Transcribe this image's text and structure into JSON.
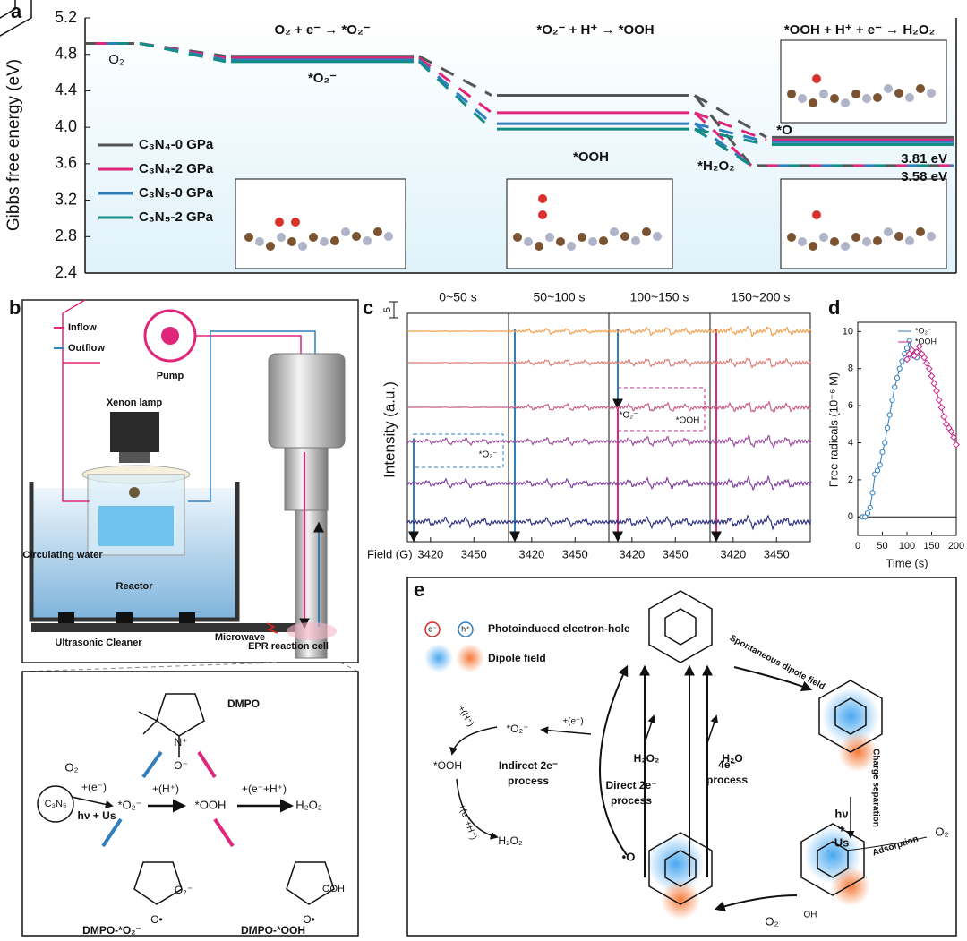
{
  "chart_data": [
    {
      "type": "energy-diagram",
      "panel_label": "a",
      "y_label": "Gibbs free energy (eV)",
      "steps": [
        "O₂ + e⁻ → *O₂⁻",
        "*O₂⁻ + H⁺ → *OOH",
        "*OOH + H⁺ + e⁻ → H₂O₂"
      ],
      "states": [
        "O₂",
        "*O₂⁻",
        "*OOH",
        "*O",
        "*H₂O₂"
      ],
      "series": [
        {
          "name": "C₃N₄-0 GPa",
          "color": "#555555",
          "values": [
            4.92,
            4.78,
            4.35,
            3.89,
            3.58
          ]
        },
        {
          "name": "C₃N₄-2 GPa",
          "color": "#e0267a",
          "values": [
            4.92,
            4.76,
            4.16,
            3.86,
            3.58
          ]
        },
        {
          "name": "C₃N₅-0 GPa",
          "color": "#2f7fbf",
          "values": [
            4.92,
            4.74,
            4.04,
            3.84,
            3.58
          ]
        },
        {
          "name": "C₃N₅-2 GPa",
          "color": "#148c86",
          "values": [
            4.92,
            4.72,
            3.98,
            3.81,
            3.58
          ]
        }
      ],
      "annotations": [
        "3.81 eV",
        "3.58 eV"
      ],
      "annotation_color": "#f0901e",
      "ylim": [
        2.4,
        5.2
      ],
      "yticks": [
        2.4,
        2.8,
        3.2,
        3.6,
        {
          "value": 4,
          "label": "4.0"
        },
        4.4,
        4.8,
        5.2
      ]
    },
    {
      "type": "epr-spectra",
      "panel_label": "c",
      "windows": [
        "0~50 s",
        "50~100 s",
        "100~150 s",
        "150~200 s"
      ],
      "y_label": "Intensity (a.u.)",
      "x_label": "Field (G)",
      "scale_label": "5",
      "xlim": [
        3404,
        3474
      ],
      "xticks": [
        3420,
        3450
      ],
      "peak_labels": [
        "*O₂⁻",
        "*O₂⁻",
        "*OOH"
      ]
    },
    {
      "type": "scatter",
      "panel_label": "d",
      "x_label": "Time (s)",
      "y_label": "Free radicals (10⁻⁶ M)",
      "xlim": [
        0,
        200
      ],
      "xticks": [
        0,
        50,
        100,
        150,
        200
      ],
      "ylim": [
        -1,
        10.5
      ],
      "yticks": [
        0,
        2,
        4,
        6,
        8,
        10
      ],
      "series": [
        {
          "name": "*O₂⁻",
          "color": "#2f7fbf",
          "x": [
            10,
            15,
            20,
            25,
            30,
            35,
            40,
            45,
            50,
            55,
            60,
            65,
            70,
            75,
            80,
            85,
            90,
            95,
            100,
            105,
            110,
            115,
            120
          ],
          "values": [
            0,
            0,
            0.2,
            0.5,
            1.3,
            2.3,
            2.5,
            2.8,
            3.5,
            4,
            4.8,
            5.5,
            6.3,
            7,
            7.5,
            8,
            8.4,
            8.8,
            9.1,
            9.5,
            8.7,
            8.9,
            8.6
          ]
        },
        {
          "name": "*OOH",
          "color": "#c8288a",
          "x": [
            100,
            105,
            110,
            115,
            120,
            125,
            130,
            135,
            140,
            145,
            150,
            155,
            160,
            165,
            170,
            175,
            180,
            185,
            190,
            195,
            200
          ],
          "values": [
            8.5,
            8.8,
            9,
            8.7,
            8.9,
            9.2,
            8.8,
            8.6,
            8.3,
            8,
            7.6,
            7.2,
            6.8,
            6.3,
            5.9,
            5.4,
            5,
            4.8,
            4.6,
            4.3,
            3.9
          ]
        }
      ]
    }
  ],
  "panel_b": {
    "label": "b",
    "inflow": "Inflow",
    "outflow": "Outflow",
    "pump": "Pump",
    "lamp": "Xenon lamp",
    "water": "Circulating water",
    "reactor": "Reactor",
    "microwave": "Microwave",
    "cleaner": "Ultrasonic Cleaner",
    "cell": "EPR reaction cell",
    "dmpo": "DMPO",
    "n_plus": "N⁺",
    "o_minus": "O⁻",
    "o2": "O₂",
    "step1": "+(e⁻)",
    "catalyst": "C₃N₅",
    "hv": "hν + Us",
    "o2_rad": "*O₂⁻",
    "step2": "+(H⁺)",
    "ooh": "*OOH",
    "step3": "+(e⁻+H⁺)",
    "h2o2": "H₂O₂",
    "o2_minus": "O₂⁻",
    "o_rad": "O•",
    "ooh_group": "OOH",
    "adduct1": "DMPO-*O₂⁻",
    "adduct2": "DMPO-*OOH"
  },
  "panel_e": {
    "label": "e",
    "electron": "e⁻",
    "hole": "h⁺",
    "legend1": "Photoinduced electron-hole",
    "legend2": "Dipole field",
    "spont": "Spontaneous dipole field",
    "hv": [
      "hν",
      "+",
      "Us"
    ],
    "charge": "Charge separation",
    "adsorption": "Adsorption",
    "o2": "O₂",
    "o2_rad": "*O₂⁻",
    "step_e": "+(e⁻)",
    "step_h": "+(H⁺)",
    "ooh": "*OOH",
    "indirect": [
      "Indirect 2e⁻",
      "process"
    ],
    "step_eh": "+(e⁻+H⁺)",
    "h2o2": "H₂O₂",
    "direct": [
      "Direct 2e⁻",
      "process"
    ],
    "four": [
      "4e⁻",
      "process"
    ],
    "h2o": "H₂O",
    "o_rad": "•O",
    "oh": "OH"
  }
}
